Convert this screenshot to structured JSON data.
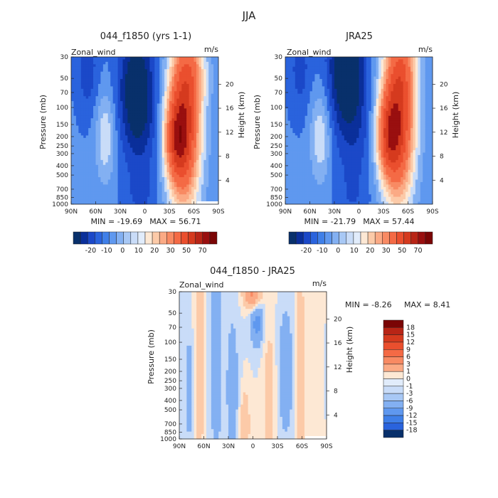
{
  "season": "JJA",
  "levels": [
    -20,
    -18,
    -15,
    -12,
    -10,
    -9,
    -6,
    -5,
    -3,
    -1,
    0,
    1,
    3,
    5,
    6,
    9,
    10,
    12,
    15,
    18,
    20,
    30,
    40,
    50,
    60,
    70
  ],
  "colors": {
    "blues": [
      "#08306b",
      "#0a2f9a",
      "#1b48c8",
      "#2a63dd",
      "#3f7fe8",
      "#5f98ef",
      "#83b0f2",
      "#a8c8f5",
      "#c9dcf8",
      "#e1ecfb"
    ],
    "reds": [
      "#fde8d4",
      "#fccaa8",
      "#fbaa85",
      "#f88a63",
      "#f46a45",
      "#ea4f2e",
      "#d53a1e",
      "#b82516",
      "#990f0f",
      "#7a0505"
    ],
    "background": "#ffffff",
    "text": "#222222"
  },
  "chart_data": [
    {
      "type": "heatmap",
      "title": "044_f1850 (yrs 1-1)",
      "variable": "Zonal_wind",
      "units": "m/s",
      "xlabel": "",
      "ylabel": "Pressure (mb)",
      "y2label": "Height (km)",
      "xticks": [
        "90N",
        "60N",
        "30N",
        "0",
        "30S",
        "60S",
        "90S"
      ],
      "yticks": [
        "30",
        "50",
        "70",
        "100",
        "150",
        "200",
        "250",
        "300",
        "400",
        "500",
        "700",
        "850",
        "1000"
      ],
      "y2ticks": [
        "20",
        "16",
        "12",
        "8",
        "4"
      ],
      "xlim": [
        90,
        -90
      ],
      "ylim": [
        1000,
        30
      ],
      "min_label": "MIN = -19.69",
      "max_label": "MAX =  56.71",
      "min": -19.69,
      "max": 56.71,
      "colorbar_ticks": [
        "-20",
        "-10",
        "0",
        "10",
        "20",
        "30",
        "50",
        "70"
      ],
      "features": [
        {
          "lat": -48,
          "p": 150,
          "amp": 55,
          "wlat": 20,
          "wlogp": 0.85
        },
        {
          "lat": -38,
          "p": 220,
          "amp": 28,
          "wlat": 14,
          "wlogp": 0.4
        },
        {
          "lat": -58,
          "p": 40,
          "amp": 15,
          "wlat": 18,
          "wlogp": 0.4
        },
        {
          "lat": 10,
          "p": 60,
          "amp": -22,
          "wlat": 22,
          "wlogp": 0.6
        },
        {
          "lat": 5,
          "p": 200,
          "amp": -6,
          "wlat": 24,
          "wlogp": 0.5
        },
        {
          "lat": 48,
          "p": 200,
          "amp": 14,
          "wlat": 12,
          "wlogp": 0.45
        },
        {
          "lat": 70,
          "p": 40,
          "amp": -9,
          "wlat": 14,
          "wlogp": 0.5
        },
        {
          "lat": 5,
          "p": 850,
          "amp": -6,
          "wlat": 20,
          "wlogp": 0.3
        }
      ],
      "base": -4,
      "missing_corner": true
    },
    {
      "type": "heatmap",
      "title": "JRA25",
      "variable": "Zonal_wind",
      "units": "m/s",
      "xlabel": "",
      "ylabel": "Pressure (mb)",
      "y2label": "Height (km)",
      "xticks": [
        "90N",
        "60N",
        "30N",
        "0",
        "30S",
        "60S",
        "90S"
      ],
      "yticks": [
        "30",
        "50",
        "70",
        "100",
        "150",
        "200",
        "250",
        "300",
        "400",
        "500",
        "700",
        "850",
        "1000"
      ],
      "y2ticks": [
        "20",
        "16",
        "12",
        "8",
        "4"
      ],
      "xlim": [
        90,
        -90
      ],
      "ylim": [
        1000,
        30
      ],
      "min_label": "MIN = -21.79",
      "max_label": "MAX =  57.44",
      "min": -21.79,
      "max": 57.44,
      "colorbar_ticks": [
        "-20",
        "-10",
        "0",
        "10",
        "20",
        "30",
        "50",
        "70"
      ],
      "features": [
        {
          "lat": -48,
          "p": 130,
          "amp": 56,
          "wlat": 20,
          "wlogp": 0.85
        },
        {
          "lat": -35,
          "p": 200,
          "amp": 30,
          "wlat": 14,
          "wlogp": 0.4
        },
        {
          "lat": -55,
          "p": 35,
          "amp": 12,
          "wlat": 18,
          "wlogp": 0.4
        },
        {
          "lat": 15,
          "p": 40,
          "amp": -25,
          "wlat": 22,
          "wlogp": 0.6
        },
        {
          "lat": 5,
          "p": 200,
          "amp": -7,
          "wlat": 24,
          "wlogp": 0.5
        },
        {
          "lat": 47,
          "p": 200,
          "amp": 14,
          "wlat": 12,
          "wlogp": 0.45
        },
        {
          "lat": 72,
          "p": 40,
          "amp": -8,
          "wlat": 14,
          "wlogp": 0.5
        },
        {
          "lat": 8,
          "p": 850,
          "amp": -5,
          "wlat": 20,
          "wlogp": 0.3
        }
      ],
      "base": -4,
      "missing_corner": false
    },
    {
      "type": "heatmap",
      "title": "044_f1850 - JRA25",
      "variable": "Zonal_wind",
      "units": "m/s",
      "xlabel": "",
      "ylabel": "Pressure (mb)",
      "y2label": "Height (km)",
      "xticks": [
        "90N",
        "60N",
        "30N",
        "0",
        "30S",
        "60S",
        "90S"
      ],
      "yticks": [
        "30",
        "50",
        "70",
        "100",
        "150",
        "200",
        "250",
        "300",
        "400",
        "500",
        "700",
        "850",
        "1000"
      ],
      "y2ticks": [
        "20",
        "16",
        "12",
        "8",
        "4"
      ],
      "xlim": [
        90,
        -90
      ],
      "ylim": [
        1000,
        30
      ],
      "min_label": "MIN =   -8.26",
      "max_label": "MAX =    8.41",
      "min": -8.26,
      "max": 8.41,
      "colorbar_ticks": [
        "18",
        "15",
        "12",
        "9",
        "6",
        "3",
        "1",
        "0",
        "-1",
        "-3",
        "-6",
        "-9",
        "-12",
        "-15",
        "-18"
      ],
      "features": [
        {
          "lat": 65,
          "p": 150,
          "amp": 3,
          "wlat": 5,
          "wlogp": 1.0
        },
        {
          "lat": 45,
          "p": 150,
          "amp": -3,
          "wlat": 6,
          "wlogp": 1.0
        },
        {
          "lat": 25,
          "p": 300,
          "amp": -2,
          "wlat": 8,
          "wlogp": 0.8
        },
        {
          "lat": 0,
          "p": 32,
          "amp": 7,
          "wlat": 10,
          "wlogp": 0.15
        },
        {
          "lat": -5,
          "p": 60,
          "amp": -4,
          "wlat": 8,
          "wlogp": 0.25
        },
        {
          "lat": -20,
          "p": 400,
          "amp": 2,
          "wlat": 7,
          "wlogp": 0.8
        },
        {
          "lat": -40,
          "p": 200,
          "amp": -3,
          "wlat": 8,
          "wlogp": 0.6
        },
        {
          "lat": -58,
          "p": 200,
          "amp": 3,
          "wlat": 5,
          "wlogp": 1.0
        },
        {
          "lat": 78,
          "p": 300,
          "amp": -2.5,
          "wlat": 4,
          "wlogp": 0.5
        },
        {
          "lat": 10,
          "p": 700,
          "amp": 2.5,
          "wlat": 6,
          "wlogp": 0.35
        }
      ],
      "base": 0,
      "missing_corner": true
    }
  ]
}
